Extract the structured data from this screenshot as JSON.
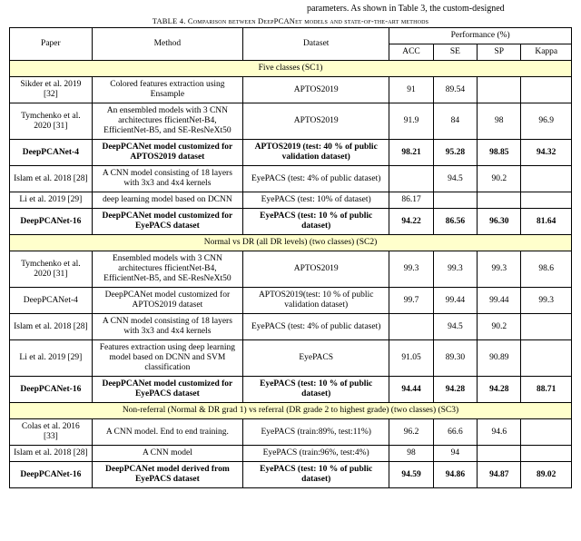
{
  "preamble": {
    "left_fragment": "parameters.  As  shown  in  Table  3,  the  custom-designed"
  },
  "caption": {
    "label": "TABLE 4.",
    "rest": " Comparison between DeepPCANet models and state-of-the-art methods"
  },
  "section_bg": "#ffffcc",
  "headers": {
    "paper": "Paper",
    "method": "Method",
    "dataset": "Dataset",
    "perf": "Performance (%)",
    "acc": "ACC",
    "se": "SE",
    "sp": "SP",
    "kappa": "Kappa"
  },
  "sections": [
    {
      "title": "Five classes (SC1)",
      "rows": [
        {
          "paper": "Sikder et al. 2019 [32]",
          "method": "Colored features extraction using Ensample",
          "dataset": "APTOS2019",
          "acc": "91",
          "se": "89.54",
          "sp": "",
          "kappa": "",
          "bold": false
        },
        {
          "paper": "Tymchenko  et al. 2020 [31]",
          "method": "An ensembled models with 3 CNN architectures fficientNet-B4, EfficientNet-B5, and SE-ResNeXt50",
          "dataset": "APTOS2019",
          "acc": "91.9",
          "se": "84",
          "sp": "98",
          "kappa": "96.9",
          "bold": false
        },
        {
          "paper": "DeepPCANet-4",
          "method": "DeepPCANet  model customized for APTOS2019 dataset",
          "dataset": "APTOS2019 (test: 40 % of public validation dataset)",
          "acc": "98.21",
          "se": "95.28",
          "sp": "98.85",
          "kappa": "94.32",
          "bold": true
        },
        {
          "paper": "Islam et al. 2018 [28]",
          "method": "A CNN model consisting of 18 layers with 3x3 and 4x4 kernels",
          "dataset": "EyePACS (test: 4% of public dataset)",
          "acc": "",
          "se": "94.5",
          "sp": "90.2",
          "kappa": "",
          "bold": false
        },
        {
          "paper": "Li et al. 2019 [29]",
          "method": "deep learning model based on DCNN",
          "dataset": "EyePACS (test: 10% of dataset)",
          "acc": "86.17",
          "se": "",
          "sp": "",
          "kappa": "",
          "bold": false
        },
        {
          "paper": "DeepPCANet-16",
          "method": "DeepPCANet   model customized for  EyePACS dataset",
          "dataset": "EyePACS (test: 10 % of public dataset)",
          "acc": "94.22",
          "se": "86.56",
          "sp": "96.30",
          "kappa": "81.64",
          "bold": true
        }
      ]
    },
    {
      "title": "Normal vs DR (all DR levels) (two classes) (SC2)",
      "rows": [
        {
          "paper": "Tymchenko  et al. 2020 [31]",
          "method": "Ensembled models with 3 CNN architectures fficientNet-B4, EfficientNet-B5, and SE-ResNeXt50",
          "dataset": "APTOS2019",
          "acc": "99.3",
          "se": "99.3",
          "sp": "99.3",
          "kappa": "98.6",
          "bold": false
        },
        {
          "paper": "DeepPCANet-4",
          "method": "DeepPCANet  model customized for APTOS2019 dataset",
          "dataset": "APTOS2019(test: 10 % of public validation dataset)",
          "acc": "99.7",
          "se": "99.44",
          "sp": "99.44",
          "kappa": "99.3",
          "bold": false
        },
        {
          "paper": "Islam et al. 2018 [28]",
          "method": "A CNN model  consisting of 18 layers with 3x3 and 4x4 kernels",
          "dataset": "EyePACS\n(test: 4% of public dataset)",
          "acc": "",
          "se": "94.5",
          "sp": "90.2",
          "kappa": "",
          "bold": false
        },
        {
          "paper": "Li et al. 2019 [29]",
          "method": "Features extraction using deep learning model based on DCNN and SVM classification",
          "dataset": "EyePACS",
          "acc": "91.05",
          "se": "89.30",
          "sp": "90.89",
          "kappa": "",
          "bold": false
        },
        {
          "paper": "DeepPCANet-16",
          "method": "DeepPCANet   model customized for  EyePACS dataset",
          "dataset": "EyePACS (test: 10 % of public dataset)",
          "acc": "94.44",
          "se": "94.28",
          "sp": "94.28",
          "kappa": "88.71",
          "bold": true
        }
      ]
    },
    {
      "title": "Non-referral (Normal & DR grad 1) vs referral (DR grade 2 to highest grade) (two classes) (SC3)",
      "rows": [
        {
          "paper": "Colas et al. 2016 [33]",
          "method": "A CNN model. End to end training.",
          "dataset": "EyePACS (train:89%, test:11%)",
          "acc": "96.2",
          "se": "66.6",
          "sp": "94.6",
          "kappa": "",
          "bold": false
        },
        {
          "paper": "Islam et al. 2018 [28]",
          "method": "A CNN model",
          "dataset": "EyePACS (train:96%, test:4%)",
          "acc": "98",
          "se": "94",
          "sp": "",
          "kappa": "",
          "bold": false
        },
        {
          "paper": "DeepPCANet-16",
          "method": "DeepPCANet   model derived from EyePACS dataset",
          "dataset": "EyePACS (test: 10 % of public dataset)",
          "acc": "94.59",
          "se": "94.86",
          "sp": "94.87",
          "kappa": "89.02",
          "bold": true
        }
      ]
    }
  ]
}
